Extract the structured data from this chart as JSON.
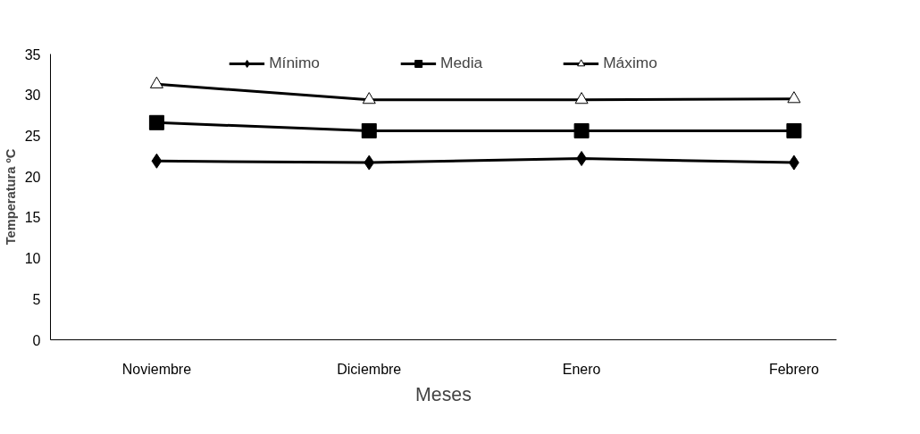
{
  "chart_data": {
    "type": "line",
    "xlabel": "Meses",
    "ylabel": "Temperatura ºC",
    "categories": [
      "Noviembre",
      "Diciembre",
      "Enero",
      "Febrero"
    ],
    "series": [
      {
        "name": "Mínimo",
        "color": "#000000",
        "marker": "diamond",
        "values": [
          21.9,
          21.7,
          22.2,
          21.7
        ]
      },
      {
        "name": "Media",
        "color": "#000000",
        "marker": "square",
        "values": [
          26.6,
          25.6,
          25.6,
          25.6
        ]
      },
      {
        "name": "Máximo",
        "color": "#000000",
        "marker": "triangle",
        "values": [
          31.3,
          29.4,
          29.4,
          29.5
        ]
      }
    ],
    "ylim": [
      0,
      35
    ],
    "yticks": [
      0,
      5,
      10,
      15,
      20,
      25,
      30,
      35
    ],
    "grid": false,
    "legend": "top",
    "line_style": "solid"
  }
}
